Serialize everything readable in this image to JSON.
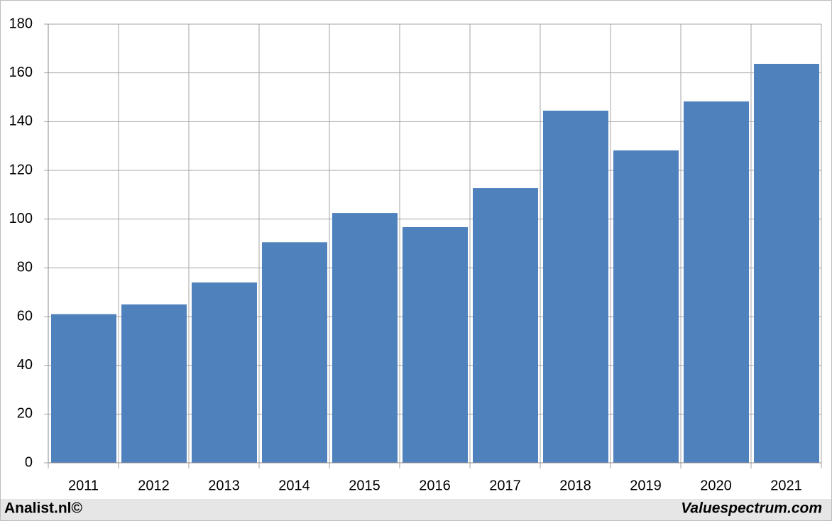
{
  "chart_data": {
    "type": "bar",
    "categories": [
      "2011",
      "2012",
      "2013",
      "2014",
      "2015",
      "2016",
      "2017",
      "2018",
      "2019",
      "2020",
      "2021"
    ],
    "values": [
      61,
      65,
      74,
      90.5,
      102.5,
      96.7,
      112.7,
      144.5,
      128.2,
      148.3,
      163.7
    ],
    "color": "#4f81bd",
    "ylim": [
      0,
      180
    ],
    "yticks": [
      0,
      20,
      40,
      60,
      80,
      100,
      120,
      140,
      160,
      180
    ],
    "grid": true
  },
  "footer": {
    "left": "Analist.nl©",
    "right": "Valuespectrum.com"
  }
}
